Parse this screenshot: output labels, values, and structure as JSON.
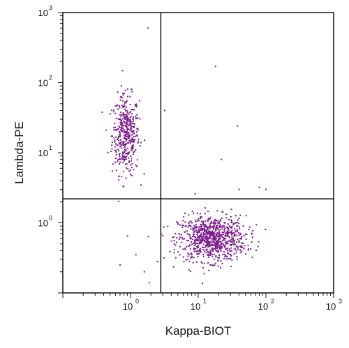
{
  "chart_data": {
    "type": "scatter",
    "title": "",
    "xlabel": "Kappa-BIOT",
    "ylabel": "Lambda-PE",
    "xscale": "log",
    "yscale": "log",
    "xlim": [
      0.1,
      1000
    ],
    "ylim": [
      0.1,
      1000
    ],
    "x_ticks": [
      {
        "base": "10",
        "exp": "0",
        "value": 1
      },
      {
        "base": "10",
        "exp": "1",
        "value": 10
      },
      {
        "base": "10",
        "exp": "2",
        "value": 100
      },
      {
        "base": "10",
        "exp": "3",
        "value": 1000
      }
    ],
    "y_ticks": [
      {
        "base": "10",
        "exp": "0",
        "value": 1
      },
      {
        "base": "10",
        "exp": "1",
        "value": 10
      },
      {
        "base": "10",
        "exp": "2",
        "value": 100
      },
      {
        "base": "10",
        "exp": "3",
        "value": 1000
      }
    ],
    "quadrant_gates": {
      "x": 2.8,
      "y": 2.2
    },
    "point_color": "#7a1a8c",
    "grid": false,
    "legend": "none",
    "populations": [
      {
        "description": "lambda-positive cluster",
        "center": {
          "x": 0.85,
          "y": 18
        },
        "spread_log10": {
          "x": 0.1,
          "y": 0.28
        },
        "count": 420
      },
      {
        "description": "kappa-positive cluster",
        "center": {
          "x": 16,
          "y": 0.6
        },
        "spread_log10": {
          "x": 0.25,
          "y": 0.16
        },
        "count": 850
      }
    ],
    "outliers": [
      {
        "x": 1.8,
        "y": 600
      },
      {
        "x": 18,
        "y": 170
      },
      {
        "x": 38,
        "y": 24
      },
      {
        "x": 22,
        "y": 8
      },
      {
        "x": 100,
        "y": 3
      },
      {
        "x": 80,
        "y": 3.2
      },
      {
        "x": 40,
        "y": 3
      },
      {
        "x": 9,
        "y": 2.6
      },
      {
        "x": 3.2,
        "y": 40
      },
      {
        "x": 1.6,
        "y": 0.2
      },
      {
        "x": 0.7,
        "y": 0.25
      },
      {
        "x": 2.5,
        "y": 0.28
      },
      {
        "x": 1.2,
        "y": 0.35
      },
      {
        "x": 0.9,
        "y": 0.65
      },
      {
        "x": 1.9,
        "y": 0.14
      }
    ]
  }
}
